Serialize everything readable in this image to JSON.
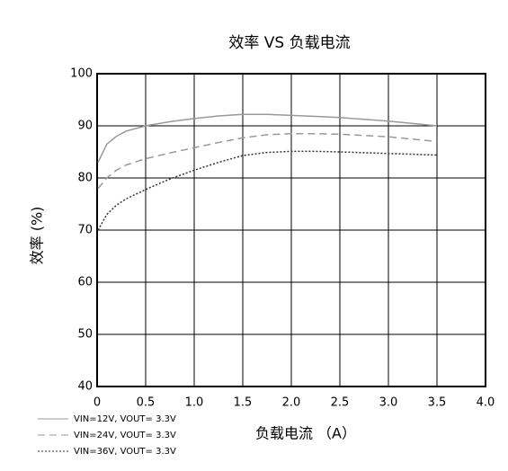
{
  "chart_data": {
    "type": "line",
    "title": "效率 VS 负载电流",
    "xlabel": "负载电流 （A）",
    "ylabel": "效率 (%)",
    "xlim": [
      0,
      4
    ],
    "ylim": [
      40,
      100
    ],
    "xticks": [
      0,
      0.5,
      {
        "value": 1,
        "label": "1.0"
      },
      1.5,
      {
        "value": 2,
        "label": "2.0"
      },
      2.5,
      {
        "value": 3,
        "label": "3.0"
      },
      3.5,
      {
        "value": 4,
        "label": "4.0"
      }
    ],
    "yticks": [
      40,
      50,
      60,
      70,
      80,
      90,
      100
    ],
    "grid": true,
    "series": [
      {
        "name": "VIN=12V, VOUT= 3.3V",
        "color": "#999999",
        "linestyle": "solid",
        "x": [
          0.01,
          0.1,
          0.2,
          0.3,
          0.5,
          0.75,
          1,
          1.25,
          1.5,
          1.75,
          2,
          2.25,
          2.5,
          3,
          3.5
        ],
        "values": [
          83,
          86.5,
          88,
          89,
          90,
          90.8,
          91.4,
          91.9,
          92.2,
          92.2,
          92,
          91.8,
          91.6,
          90.9,
          90
        ]
      },
      {
        "name": "VIN=24V, VOUT= 3.3V",
        "color": "#999999",
        "linestyle": "dashed",
        "x": [
          0.01,
          0.1,
          0.2,
          0.3,
          0.5,
          0.75,
          1,
          1.25,
          1.5,
          1.75,
          2,
          2.25,
          2.5,
          3,
          3.5
        ],
        "values": [
          78,
          80,
          81.5,
          82.5,
          83.7,
          84.8,
          85.8,
          86.8,
          87.7,
          88.3,
          88.5,
          88.5,
          88.4,
          87.9,
          87
        ]
      },
      {
        "name": "VIN=36V, VOUT= 3.3V",
        "color": "#333333",
        "linestyle": "dotted",
        "x": [
          0.01,
          0.1,
          0.2,
          0.3,
          0.5,
          0.75,
          1,
          1.25,
          1.5,
          1.75,
          2,
          2.25,
          2.5,
          3,
          3.5
        ],
        "values": [
          70,
          73,
          74.8,
          76,
          77.8,
          79.8,
          81.5,
          83,
          84.3,
          84.9,
          85.1,
          85.1,
          85,
          84.7,
          84.4
        ]
      }
    ]
  }
}
